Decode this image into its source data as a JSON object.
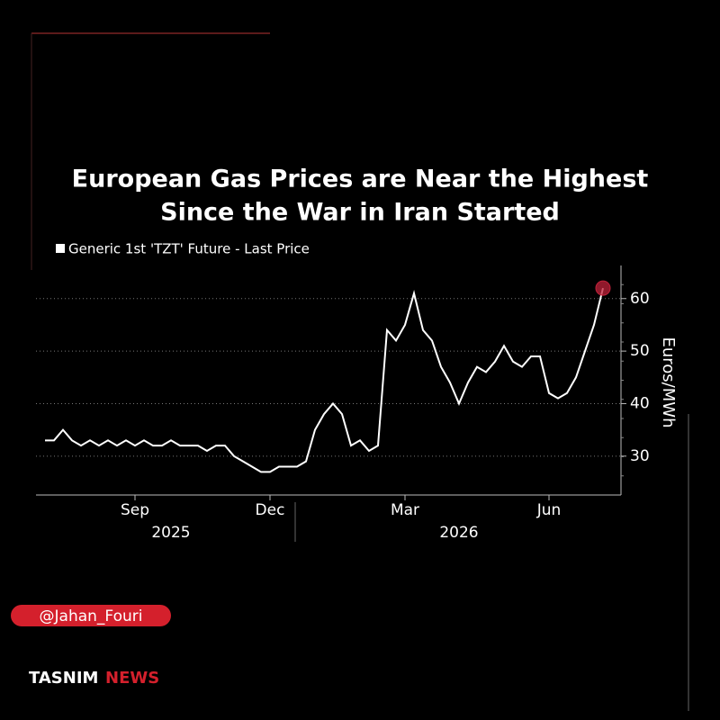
{
  "chart_data": {
    "type": "line",
    "title": [
      "European Gas Prices are Near the Highest",
      "Since the War in Iran Started"
    ],
    "y_label": "Euros/MWh",
    "categories": [
      null,
      null,
      null,
      null,
      null,
      null,
      null,
      null,
      null,
      null,
      "Sep",
      null,
      null,
      null,
      null,
      null,
      null,
      null,
      null,
      null,
      null,
      null,
      null,
      null,
      null,
      "Dec",
      null,
      null,
      null,
      null,
      null,
      null,
      null,
      null,
      null,
      null,
      null,
      null,
      null,
      null,
      "Mar",
      null,
      null,
      null,
      null,
      null,
      null,
      null,
      null,
      null,
      null,
      null,
      null,
      null,
      null,
      null,
      "Jun",
      null,
      null,
      null,
      null,
      null,
      null
    ],
    "year_labels": [
      "2025",
      "2026"
    ],
    "series": [
      {
        "name": "Generic 1st 'TZT' Future - Last Price",
        "color": "#ffffff",
        "values": [
          33,
          33,
          35,
          33,
          32,
          33,
          32,
          33,
          32,
          33,
          32,
          33,
          32,
          32,
          33,
          32,
          32,
          32,
          31,
          32,
          32,
          30,
          29,
          28,
          27,
          27,
          28,
          28,
          28,
          29,
          35,
          38,
          40,
          38,
          32,
          33,
          31,
          32,
          54,
          52,
          55,
          61,
          54,
          52,
          47,
          44,
          40,
          44,
          47,
          46,
          48,
          51,
          48,
          47,
          49,
          49,
          42,
          41,
          42,
          45,
          50,
          55,
          62
        ]
      }
    ],
    "ylim": [
      22.6,
      66.3
    ],
    "yticks": [
      30,
      40,
      50,
      60
    ],
    "grid": true,
    "last_point_color": "#c0213a"
  },
  "overlay": {
    "handle": "@Jahan_Fouri",
    "brand": "TASNIM",
    "brand_suffix": "NEWS"
  }
}
